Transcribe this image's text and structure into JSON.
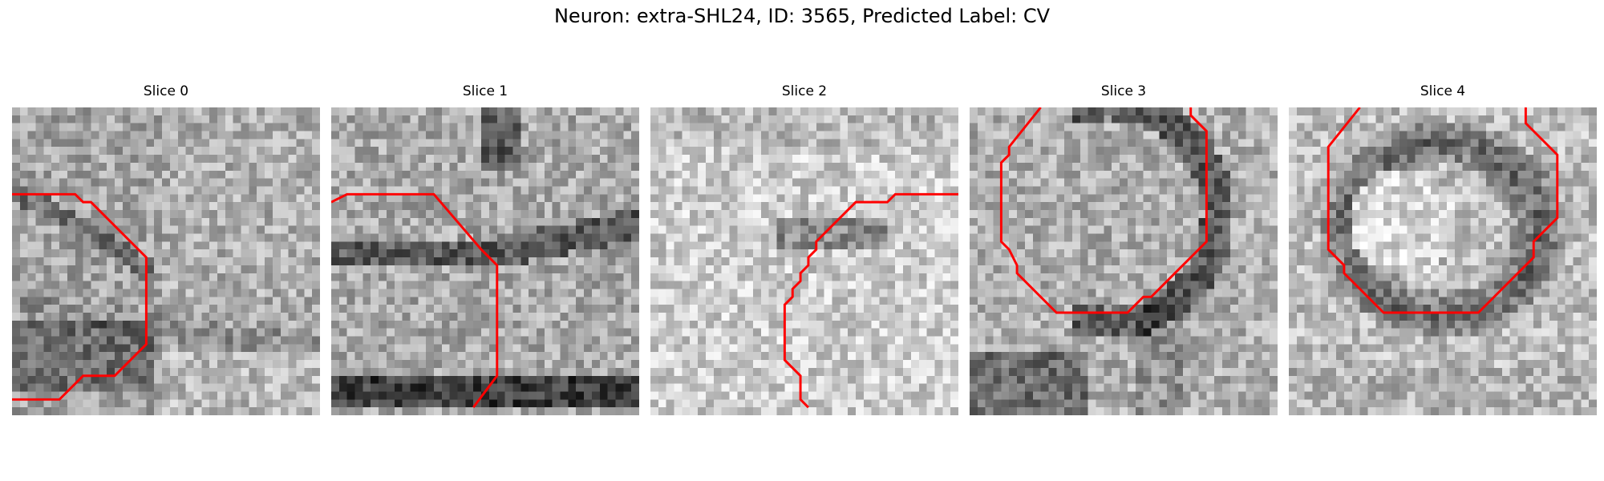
{
  "figure": {
    "title": "Neuron: extra-SHL24, ID: 3565, Predicted Label: CV"
  },
  "panels": [
    {
      "title": "Slice 0",
      "pattern": "diagonal-membrane-lower-left",
      "contour": [
        [
          0,
          11
        ],
        [
          8,
          11
        ],
        [
          9,
          12
        ],
        [
          10,
          12
        ],
        [
          17,
          19
        ],
        [
          17,
          30
        ],
        [
          13,
          34
        ],
        [
          9,
          34
        ],
        [
          6,
          37
        ],
        [
          0,
          37
        ]
      ]
    },
    {
      "title": "Slice 1",
      "pattern": "horizontal-bands",
      "contour": [
        [
          0,
          12
        ],
        [
          2,
          11
        ],
        [
          13,
          11
        ],
        [
          19,
          18
        ],
        [
          21,
          20
        ],
        [
          21,
          34
        ],
        [
          18,
          38
        ]
      ]
    },
    {
      "title": "Slice 2",
      "pattern": "light-speckle",
      "contour": [
        [
          40,
          11
        ],
        [
          31,
          11
        ],
        [
          30,
          12
        ],
        [
          26,
          12
        ],
        [
          21,
          17
        ],
        [
          21,
          18
        ],
        [
          20,
          19
        ],
        [
          20,
          20
        ],
        [
          19,
          21
        ],
        [
          19,
          22
        ],
        [
          18,
          23
        ],
        [
          18,
          24
        ],
        [
          17,
          25
        ],
        [
          17,
          32
        ],
        [
          18,
          33
        ],
        [
          19,
          34
        ],
        [
          19,
          37
        ],
        [
          20,
          38
        ]
      ]
    },
    {
      "title": "Slice 3",
      "pattern": "ring-top-right",
      "contour": [
        [
          9,
          0
        ],
        [
          5,
          5
        ],
        [
          5,
          6
        ],
        [
          4,
          7
        ],
        [
          4,
          17
        ],
        [
          5,
          18
        ],
        [
          6,
          20
        ],
        [
          6,
          21
        ],
        [
          11,
          26
        ],
        [
          20,
          26
        ],
        [
          21,
          25
        ],
        [
          22,
          24
        ],
        [
          23,
          24
        ],
        [
          30,
          17
        ],
        [
          30,
          3
        ],
        [
          28,
          1
        ],
        [
          28,
          0
        ]
      ]
    },
    {
      "title": "Slice 4",
      "pattern": "ring-center",
      "contour": [
        [
          9,
          0
        ],
        [
          5,
          5
        ],
        [
          5,
          18
        ],
        [
          7,
          20
        ],
        [
          7,
          21
        ],
        [
          12,
          26
        ],
        [
          24,
          26
        ],
        [
          31,
          19
        ],
        [
          31,
          17
        ],
        [
          34,
          14
        ],
        [
          34,
          6
        ],
        [
          30,
          2
        ],
        [
          30,
          0
        ]
      ]
    }
  ]
}
